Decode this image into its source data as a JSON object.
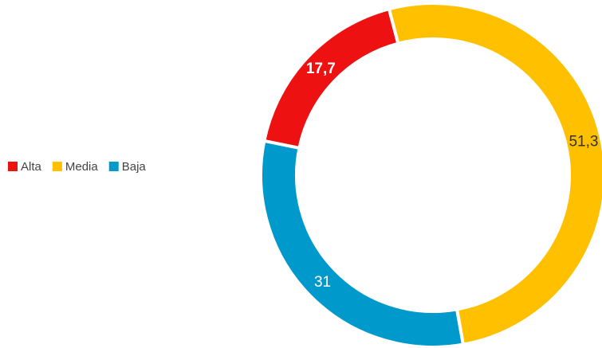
{
  "chart_data": {
    "type": "donut",
    "categories": [
      "Alta",
      "Media",
      "Baja"
    ],
    "values": [
      17.7,
      51.3,
      31
    ],
    "value_labels": [
      "17,7",
      "51,3",
      "31"
    ],
    "colors": [
      "#ee1111",
      "#ffc000",
      "#0099cc"
    ],
    "legend": "left"
  }
}
